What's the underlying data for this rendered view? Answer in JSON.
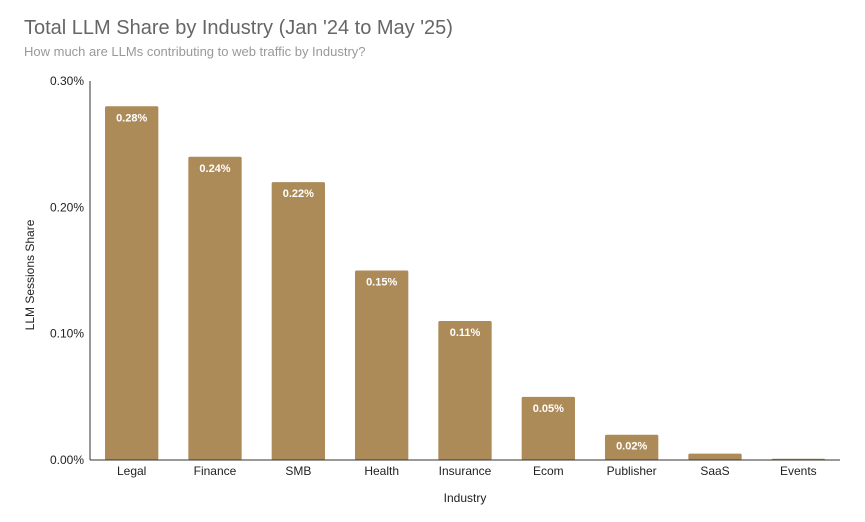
{
  "chart_data": {
    "type": "bar",
    "title": "Total LLM Share by Industry (Jan '24 to May '25)",
    "subtitle": "How much are LLMs contributing to web traffic by Industry?",
    "xlabel": "Industry",
    "ylabel": "LLM Sessions Share",
    "categories": [
      "Legal",
      "Finance",
      "SMB",
      "Health",
      "Insurance",
      "Ecom",
      "Publisher",
      "SaaS",
      "Events"
    ],
    "values": [
      0.28,
      0.24,
      0.22,
      0.15,
      0.11,
      0.05,
      0.02,
      0.005,
      0.001
    ],
    "data_labels": [
      "0.28%",
      "0.24%",
      "0.22%",
      "0.15%",
      "0.11%",
      "0.05%",
      "0.02%",
      "",
      ""
    ],
    "ylim": [
      0,
      0.3
    ],
    "yticks": [
      0,
      0.1,
      0.2,
      0.3
    ],
    "ytick_labels": [
      "0.00%",
      "0.10%",
      "0.20%",
      "0.30%"
    ],
    "grid": false,
    "legend": "none",
    "bar_color": "#AD8B59"
  }
}
